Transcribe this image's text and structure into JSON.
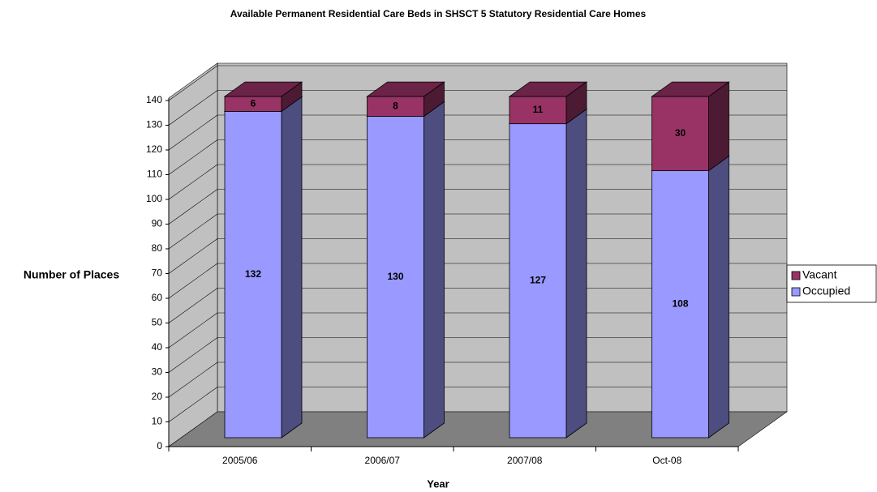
{
  "chart_data": {
    "type": "bar3d_stacked",
    "title": "Available Permanent Residential Care Beds in SHSCT 5 Statutory Residential Care Homes",
    "x_label": "Year",
    "y_label": "Number of Places",
    "categories": [
      "2005/06",
      "2006/07",
      "2007/08",
      "Oct-08"
    ],
    "series": [
      {
        "name": "Occupied",
        "color": "#9999ff",
        "values": [
          132,
          130,
          127,
          108
        ]
      },
      {
        "name": "Vacant",
        "color": "#993366",
        "values": [
          6,
          8,
          11,
          30
        ]
      }
    ],
    "ylim": [
      0,
      140
    ],
    "yticks": [
      0,
      10,
      20,
      30,
      40,
      50,
      60,
      70,
      80,
      90,
      100,
      110,
      120,
      130,
      140
    ],
    "grid": true,
    "legend": "right"
  }
}
